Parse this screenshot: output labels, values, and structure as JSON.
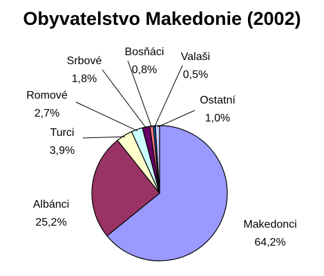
{
  "chart_data": {
    "type": "pie",
    "title": "Obyvatelstvo Makedonie (2002)",
    "slices": [
      {
        "label": "Makedonci",
        "value": 64.2,
        "value_text": "64,2%",
        "color": "#9999ff"
      },
      {
        "label": "Albánci",
        "value": 25.2,
        "value_text": "25,2%",
        "color": "#993366"
      },
      {
        "label": "Turci",
        "value": 3.9,
        "value_text": "3,9%",
        "color": "#ffffcc"
      },
      {
        "label": "Romové",
        "value": 2.7,
        "value_text": "2,7%",
        "color": "#ccffff"
      },
      {
        "label": "Srbové",
        "value": 1.8,
        "value_text": "1,8%",
        "color": "#660066"
      },
      {
        "label": "Bosňáci",
        "value": 0.8,
        "value_text": "0,8%",
        "color": "#ff8080"
      },
      {
        "label": "Valaši",
        "value": 0.5,
        "value_text": "0,5%",
        "color": "#0066cc"
      },
      {
        "label": "Ostatní",
        "value": 1.0,
        "value_text": "1,0%",
        "color": "#ccccff"
      }
    ],
    "legend": "none",
    "data_labels": "outside"
  }
}
